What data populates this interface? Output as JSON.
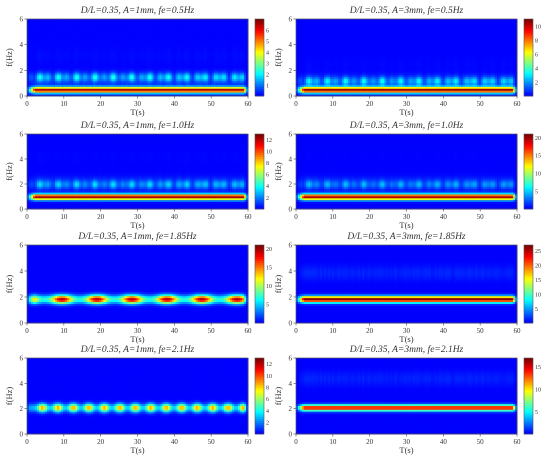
{
  "figure": {
    "xlabel": "T(s)",
    "ylabel": "f(Hz)"
  },
  "chart_data": [
    {
      "type": "heatmap",
      "title": "D/L=0.35, A=1mm, fe=0.5Hz",
      "xlabel": "T(s)",
      "ylabel": "f(Hz)",
      "xlim": [
        0,
        60
      ],
      "ylim": [
        0,
        6
      ],
      "x_ticks": [
        0,
        10,
        20,
        30,
        40,
        50,
        60
      ],
      "y_ticks": [
        0,
        2,
        4,
        6
      ],
      "colorbar_ticks": [
        1,
        2,
        3,
        4,
        5,
        6
      ],
      "colorbar_range": [
        0,
        7
      ],
      "ridges": [
        {
          "f": 0.5,
          "amplitude": 6.5,
          "modulation": "steady"
        },
        {
          "f": 1.5,
          "amplitude": 2.2,
          "modulation": "fluctuating"
        }
      ]
    },
    {
      "type": "heatmap",
      "title": "D/L=0.35, A=3mm, fe=0.5Hz",
      "xlabel": "T(s)",
      "ylabel": "f(Hz)",
      "xlim": [
        0,
        60
      ],
      "ylim": [
        0,
        6
      ],
      "x_ticks": [
        0,
        10,
        20,
        30,
        40,
        50,
        60
      ],
      "y_ticks": [
        0,
        2,
        4,
        6
      ],
      "colorbar_ticks": [
        2,
        4,
        6,
        8,
        10
      ],
      "colorbar_range": [
        0,
        11
      ],
      "ridges": [
        {
          "f": 0.5,
          "amplitude": 10.5,
          "modulation": "steady"
        },
        {
          "f": 1.2,
          "amplitude": 3.0,
          "modulation": "fluctuating"
        }
      ]
    },
    {
      "type": "heatmap",
      "title": "D/L=0.35, A=1mm, fe=1.0Hz",
      "xlabel": "T(s)",
      "ylabel": "f(Hz)",
      "xlim": [
        0,
        60
      ],
      "ylim": [
        0,
        6
      ],
      "x_ticks": [
        0,
        10,
        20,
        30,
        40,
        50,
        60
      ],
      "y_ticks": [
        0,
        2,
        4,
        6
      ],
      "colorbar_ticks": [
        2,
        4,
        6,
        8,
        10,
        12
      ],
      "colorbar_range": [
        0,
        13
      ],
      "ridges": [
        {
          "f": 1.0,
          "amplitude": 12.5,
          "modulation": "steady"
        },
        {
          "f": 2.0,
          "amplitude": 3.0,
          "modulation": "fluctuating"
        }
      ]
    },
    {
      "type": "heatmap",
      "title": "D/L=0.35, A=3mm, fe=1.0Hz",
      "xlabel": "T(s)",
      "ylabel": "f(Hz)",
      "xlim": [
        0,
        60
      ],
      "ylim": [
        0,
        6
      ],
      "x_ticks": [
        0,
        10,
        20,
        30,
        40,
        50,
        60
      ],
      "y_ticks": [
        0,
        2,
        4,
        6
      ],
      "colorbar_ticks": [
        5,
        10,
        15,
        20
      ],
      "colorbar_range": [
        0,
        21
      ],
      "ridges": [
        {
          "f": 1.0,
          "amplitude": 20,
          "modulation": "steady"
        },
        {
          "f": 2.0,
          "amplitude": 4.0,
          "modulation": "fluctuating"
        }
      ]
    },
    {
      "type": "heatmap",
      "title": "D/L=0.35, A=1mm, fe=1.85Hz",
      "xlabel": "T(s)",
      "ylabel": "f(Hz)",
      "xlim": [
        0,
        60
      ],
      "ylim": [
        0,
        6
      ],
      "x_ticks": [
        0,
        10,
        20,
        30,
        40,
        50,
        60
      ],
      "y_ticks": [
        0,
        2,
        4,
        6
      ],
      "colorbar_ticks": [
        5,
        10,
        15,
        20
      ],
      "colorbar_range": [
        0,
        21
      ],
      "ridges": [
        {
          "f": 1.85,
          "amplitude": 20,
          "modulation": "beating",
          "period_s": 9.5
        }
      ]
    },
    {
      "type": "heatmap",
      "title": "D/L=0.35, A=3mm, fe=1.85Hz",
      "xlabel": "T(s)",
      "ylabel": "f(Hz)",
      "xlim": [
        0,
        60
      ],
      "ylim": [
        0,
        6
      ],
      "x_ticks": [
        0,
        10,
        20,
        30,
        40,
        50,
        60
      ],
      "y_ticks": [
        0,
        2,
        4,
        6
      ],
      "colorbar_ticks": [
        5,
        10,
        15,
        20,
        25
      ],
      "colorbar_range": [
        0,
        27
      ],
      "ridges": [
        {
          "f": 1.85,
          "amplitude": 27,
          "modulation": "steady"
        }
      ]
    },
    {
      "type": "heatmap",
      "title": "D/L=0.35, A=1mm, fe=2.1Hz",
      "xlabel": "T(s)",
      "ylabel": "f(Hz)",
      "xlim": [
        0,
        60
      ],
      "ylim": [
        0,
        6
      ],
      "x_ticks": [
        0,
        10,
        20,
        30,
        40,
        50,
        60
      ],
      "y_ticks": [
        0,
        2,
        4,
        6
      ],
      "colorbar_ticks": [
        2,
        4,
        6,
        8,
        10,
        12
      ],
      "colorbar_range": [
        0,
        13
      ],
      "ridges": [
        {
          "f": 2.1,
          "amplitude": 9,
          "modulation": "beating",
          "period_s": 4.2
        }
      ]
    },
    {
      "type": "heatmap",
      "title": "D/L=0.35, A=3mm, fe=2.1Hz",
      "xlabel": "T(s)",
      "ylabel": "f(Hz)",
      "xlim": [
        0,
        60
      ],
      "ylim": [
        0,
        6
      ],
      "x_ticks": [
        0,
        10,
        20,
        30,
        40,
        50,
        60
      ],
      "y_ticks": [
        0,
        2,
        4,
        6
      ],
      "colorbar_ticks": [
        5,
        10,
        15
      ],
      "colorbar_range": [
        0,
        17
      ],
      "ridges": [
        {
          "f": 2.1,
          "amplitude": 15,
          "modulation": "steady"
        }
      ]
    }
  ]
}
